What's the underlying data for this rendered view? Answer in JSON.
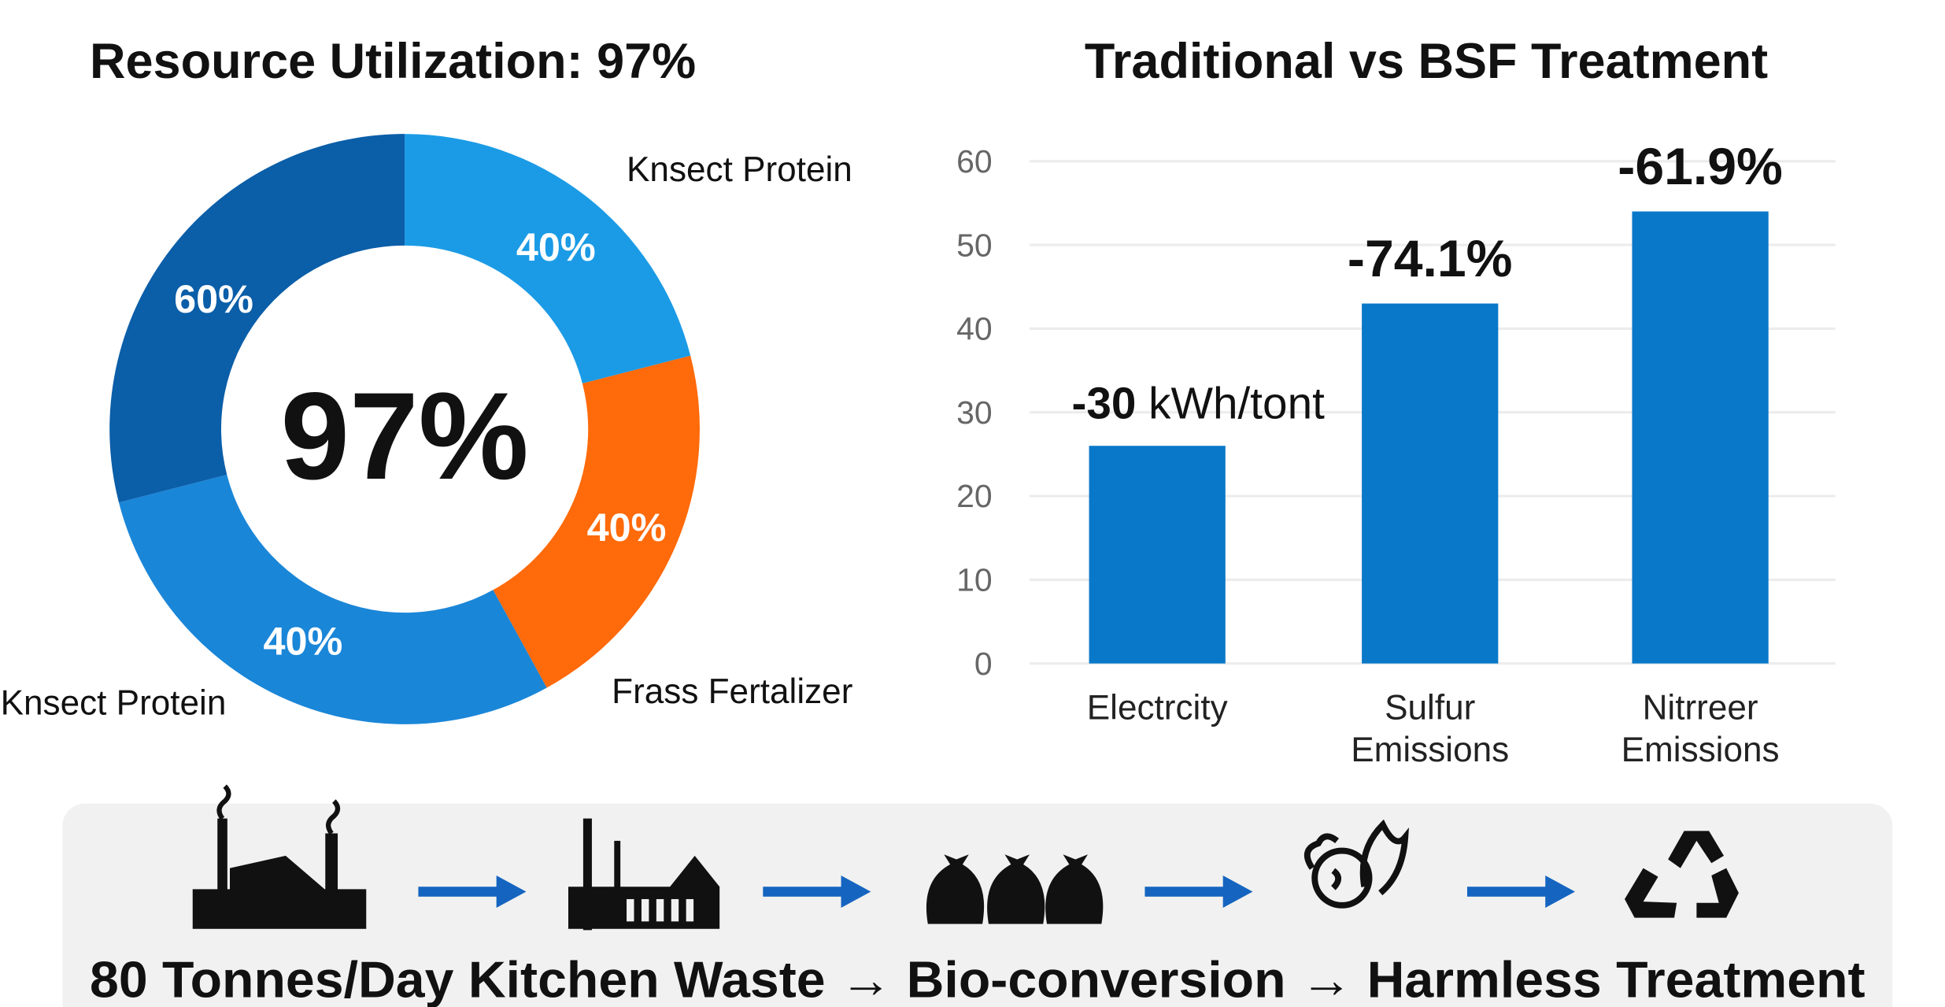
{
  "colors": {
    "dark_blue": "#0b5ea8",
    "light_blue": "#1b9be6",
    "orange": "#ff6a0a",
    "mid_blue": "#1a86d8",
    "bar": "#0a78c8",
    "panel": "#f1f1f1"
  },
  "chart_data": [
    {
      "type": "pie",
      "title": "Resource Utilization: 97%",
      "center_label": "97%",
      "slices": [
        {
          "label": "40%",
          "arc_fraction": 0.21,
          "color": "#1b9be6"
        },
        {
          "label": "40%",
          "arc_fraction": 0.21,
          "color": "#ff6a0a"
        },
        {
          "label": "40%",
          "arc_fraction": 0.29,
          "color": "#1a86d8"
        },
        {
          "label": "60%",
          "arc_fraction": 0.29,
          "color": "#0b5ea8"
        }
      ],
      "legend": [
        "Knsect Protein",
        "Frass Fertalizer",
        "Knsect Protein"
      ]
    },
    {
      "type": "bar",
      "title": "Traditional vs BSF Treatment",
      "categories": [
        [
          "Electrcity"
        ],
        [
          "Sulfur",
          "Emissions"
        ],
        [
          "Nitrreer",
          "Emissions"
        ]
      ],
      "values": [
        26,
        43,
        54
      ],
      "data_labels": [
        {
          "bold": "-30",
          "rest": " kWh/tont"
        },
        {
          "bold": "-74.1%",
          "rest": ""
        },
        {
          "bold": "-61.9%",
          "rest": ""
        }
      ],
      "yticks": [
        0,
        10,
        20,
        30,
        40,
        50,
        60
      ],
      "ylim": [
        0,
        60
      ],
      "grid": true
    }
  ],
  "process": {
    "icons": [
      "factory-smoke-icon",
      "factory-icon",
      "garbage-bags-icon",
      "vegetables-icon",
      "recycle-icon"
    ],
    "caption": "80 Tonnes/Day Kitchen Waste → Bio-conversion → Harmless Treatment"
  }
}
